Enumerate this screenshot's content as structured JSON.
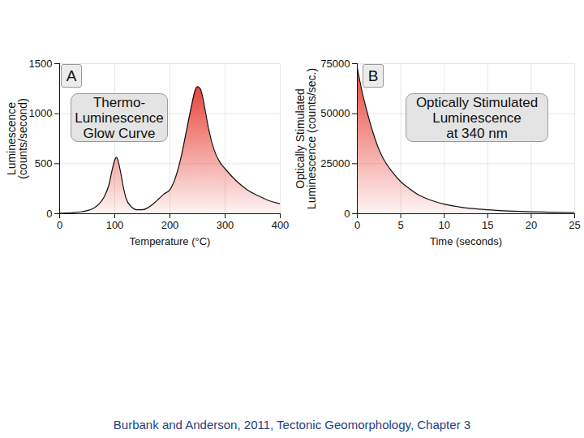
{
  "chart_data": [
    {
      "type": "area",
      "title": "Thermo-\nLuminescence\nGlow Curve",
      "annotations": [
        "A"
      ],
      "xlabel": "Temperature (°C)",
      "ylabel": "Luminescence\n(counts/second)",
      "x": [
        0,
        20,
        40,
        60,
        70,
        80,
        90,
        95,
        100,
        103,
        106,
        110,
        115,
        120,
        130,
        140,
        150,
        160,
        170,
        180,
        190,
        200,
        205,
        210,
        220,
        230,
        240,
        245,
        250,
        255,
        260,
        265,
        270,
        280,
        290,
        300,
        320,
        340,
        360,
        380,
        400
      ],
      "values": [
        5,
        10,
        20,
        50,
        90,
        160,
        300,
        430,
        540,
        565,
        530,
        430,
        280,
        160,
        70,
        40,
        40,
        60,
        100,
        150,
        200,
        240,
        290,
        360,
        560,
        830,
        1100,
        1220,
        1270,
        1250,
        1150,
        1000,
        850,
        640,
        520,
        450,
        330,
        240,
        180,
        130,
        100
      ],
      "color": "#e8453c",
      "xlim": [
        0,
        400
      ],
      "ylim": [
        0,
        1500
      ],
      "xticks": [
        0,
        100,
        200,
        300,
        400
      ],
      "yticks": [
        0,
        500,
        1000,
        1500
      ],
      "grid": true
    },
    {
      "type": "area",
      "title": "Optically Stimulated\nLuminescence\nat 340 nm",
      "annotations": [
        "B"
      ],
      "xlabel": "Time (seconds)",
      "ylabel": "Optically Stimulated\nLuminescence (counts/sec.)",
      "x": [
        0,
        0.5,
        1,
        1.5,
        2,
        2.5,
        3,
        4,
        5,
        6,
        7,
        8,
        9,
        10,
        12,
        14,
        16,
        18,
        20,
        22,
        25
      ],
      "values": [
        73000,
        62000,
        53000,
        45000,
        38000,
        32000,
        27500,
        21000,
        16000,
        12500,
        9500,
        7500,
        6000,
        4800,
        3200,
        2300,
        1700,
        1300,
        1000,
        800,
        600
      ],
      "color": "#e8453c",
      "xlim": [
        0,
        25
      ],
      "ylim": [
        0,
        75000
      ],
      "xticks": [
        0,
        5,
        10,
        15,
        20,
        25
      ],
      "yticks": [
        0,
        25000,
        50000,
        75000
      ],
      "grid": true
    }
  ],
  "caption": "Burbank and Anderson, 2011, Tectonic Geomorphology, Chapter 3"
}
